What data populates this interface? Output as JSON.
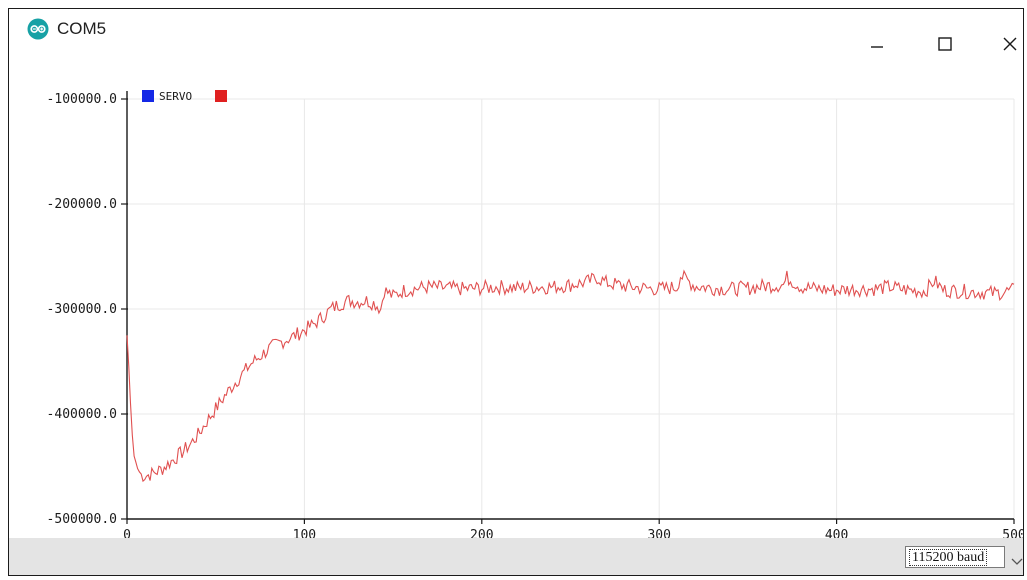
{
  "window": {
    "title": "COM5",
    "icon": "arduino-logo-icon",
    "controls": [
      "minimize-icon",
      "maximize-icon",
      "close-icon"
    ]
  },
  "plotter": {
    "legend": [
      {
        "label": "",
        "color": "#1428e6"
      },
      {
        "label": "SERVO",
        "color": "#e02020"
      }
    ]
  },
  "bottom_bar": {
    "baud": "115200 baud",
    "dropdown_icon": "chevron-down-icon"
  },
  "colors": {
    "series": "#e05050",
    "grid": "#e8e8e8",
    "axis": "#1a1a1a"
  },
  "chart_data": {
    "type": "line",
    "x_ticks": [
      "0",
      "100",
      "200",
      "300",
      "400",
      "500"
    ],
    "y_ticks": [
      "-100000.0",
      "-200000.0",
      "-300000.0",
      "-400000.0",
      "-500000.0"
    ],
    "xlim": [
      0,
      500
    ],
    "ylim": [
      -500000,
      -100000
    ],
    "grid": true,
    "legend_position": "top-left",
    "series": [
      {
        "name": "SERVO",
        "color": "#e05050",
        "x": [
          0,
          1,
          2,
          3,
          4,
          6,
          8,
          10,
          14,
          20,
          25,
          30,
          35,
          40,
          45,
          50,
          55,
          60,
          65,
          70,
          75,
          80,
          85,
          90,
          95,
          100,
          105,
          110,
          115,
          120,
          125,
          130,
          135,
          140,
          143,
          145,
          150,
          155,
          160,
          170,
          180,
          190,
          200,
          210,
          220,
          230,
          240,
          250,
          260,
          265,
          270,
          280,
          290,
          300,
          310,
          312,
          320,
          330,
          340,
          350,
          360,
          370,
          372,
          380,
          390,
          400,
          410,
          420,
          430,
          440,
          450,
          455,
          460,
          470,
          480,
          490,
          500
        ],
        "y": [
          -325000,
          -355000,
          -390000,
          -420000,
          -440000,
          -452000,
          -458000,
          -459000,
          -457000,
          -452000,
          -445000,
          -438000,
          -430000,
          -420000,
          -407000,
          -395000,
          -383000,
          -372000,
          -362000,
          -352000,
          -345000,
          -338000,
          -333000,
          -329000,
          -325000,
          -320000,
          -315000,
          -308000,
          -300000,
          -295000,
          -292000,
          -293000,
          -292000,
          -295000,
          -300000,
          -282000,
          -288000,
          -283000,
          -281000,
          -279000,
          -280000,
          -281000,
          -280000,
          -279000,
          -280000,
          -279000,
          -279000,
          -277000,
          -274000,
          -270000,
          -275000,
          -278000,
          -280000,
          -281000,
          -279000,
          -268000,
          -278000,
          -280000,
          -281000,
          -280000,
          -278000,
          -277000,
          -270000,
          -279000,
          -281000,
          -282000,
          -281000,
          -281000,
          -279000,
          -282000,
          -283000,
          -273000,
          -282000,
          -283000,
          -284000,
          -285000,
          -282000
        ]
      }
    ]
  }
}
